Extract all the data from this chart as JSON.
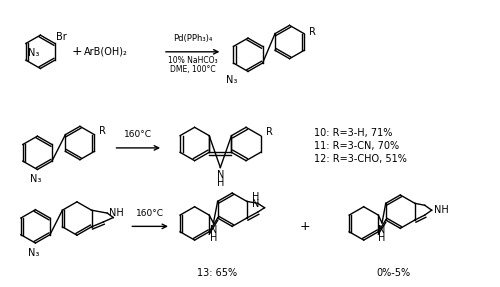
{
  "background_color": "#ffffff",
  "figsize": [
    5.0,
    2.87
  ],
  "dpi": 100,
  "reaction1": {
    "catalyst": "Pd(PPh₃)₄",
    "cond1": "10% NaHCO₃",
    "cond2": "DME, 100°C"
  },
  "reaction2": {
    "temperature": "160°C",
    "yields": [
      "10: R=3-H, 71%",
      "11: R=3-CN, 70%",
      "12: R=3-CHO, 51%"
    ]
  },
  "reaction3": {
    "temperature": "160°C",
    "yield1": "13: 65%",
    "yield2": "0%-5%"
  }
}
